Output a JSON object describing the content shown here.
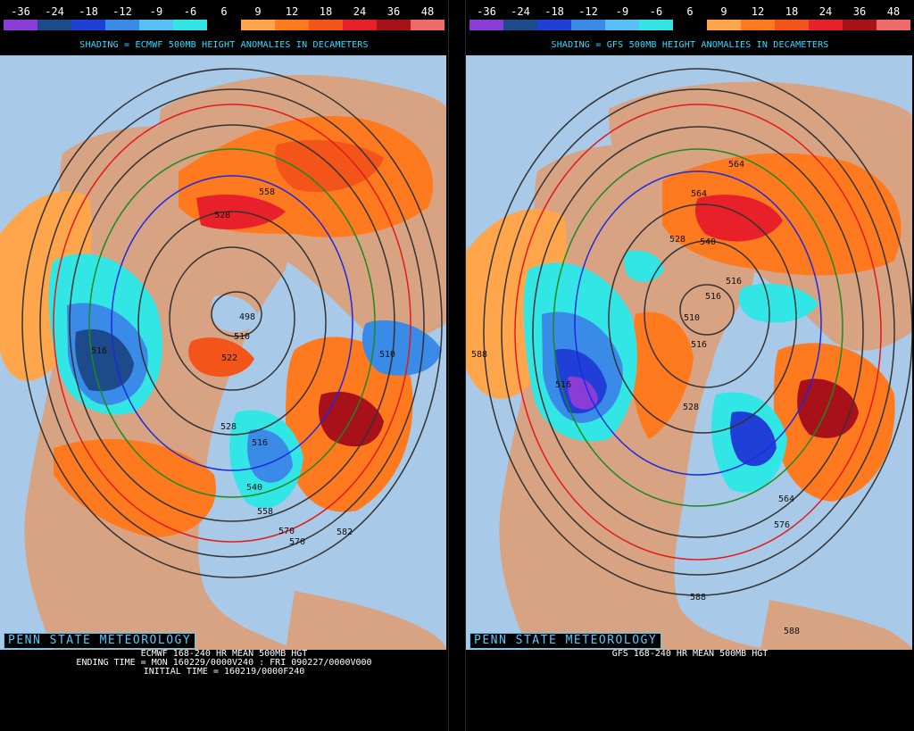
{
  "colorbar": {
    "labels": [
      "-36",
      "-24",
      "-18",
      "-12",
      "-9",
      "-6",
      "6",
      "9",
      "12",
      "18",
      "24",
      "36",
      "48"
    ],
    "colors": [
      "#8a3cd6",
      "#1c4a8a",
      "#1f3fd6",
      "#3a8ae8",
      "#55c0f5",
      "#33e6e6",
      "#000000",
      "#ffa64d",
      "#ff7a1f",
      "#f2541a",
      "#e8202a",
      "#a8101a",
      "#f06a6a"
    ]
  },
  "panels": [
    {
      "shading_label": "SHADING = ECMWF 500MB HEIGHT ANOMALIES IN DECAMETERS",
      "brand": "PENN STATE METEOROLOGY",
      "footer": [
        "ECMWF 168-240 HR MEAN 500MB HGT",
        "ENDING TIME = MON 160229/0000V240 : FRI 090227/0000V000",
        "INITIAL TIME = 160219/0000F240"
      ],
      "contour_labels": [
        "558",
        "528",
        "510",
        "498",
        "522",
        "516",
        "528",
        "516",
        "582",
        "570",
        "570",
        "558",
        "540",
        "510"
      ]
    },
    {
      "shading_label": "SHADING = GFS 500MB HEIGHT ANOMALIES IN DECAMETERS",
      "brand": "PENN STATE METEOROLOGY",
      "footer": [
        "GFS 168-240 HR MEAN 500MB HGT"
      ],
      "contour_labels": [
        "564",
        "564",
        "528",
        "540",
        "516",
        "516",
        "510",
        "516",
        "528",
        "564",
        "576",
        "588",
        "588",
        "588",
        "516"
      ]
    }
  ],
  "map_colors": {
    "ocean": "#a9c9e8",
    "land": "#d8a383",
    "contour": "#333333",
    "contour_576": "#e21a1a",
    "contour_540": "#1c8a1c",
    "contour_528": "#1a2ae0"
  }
}
